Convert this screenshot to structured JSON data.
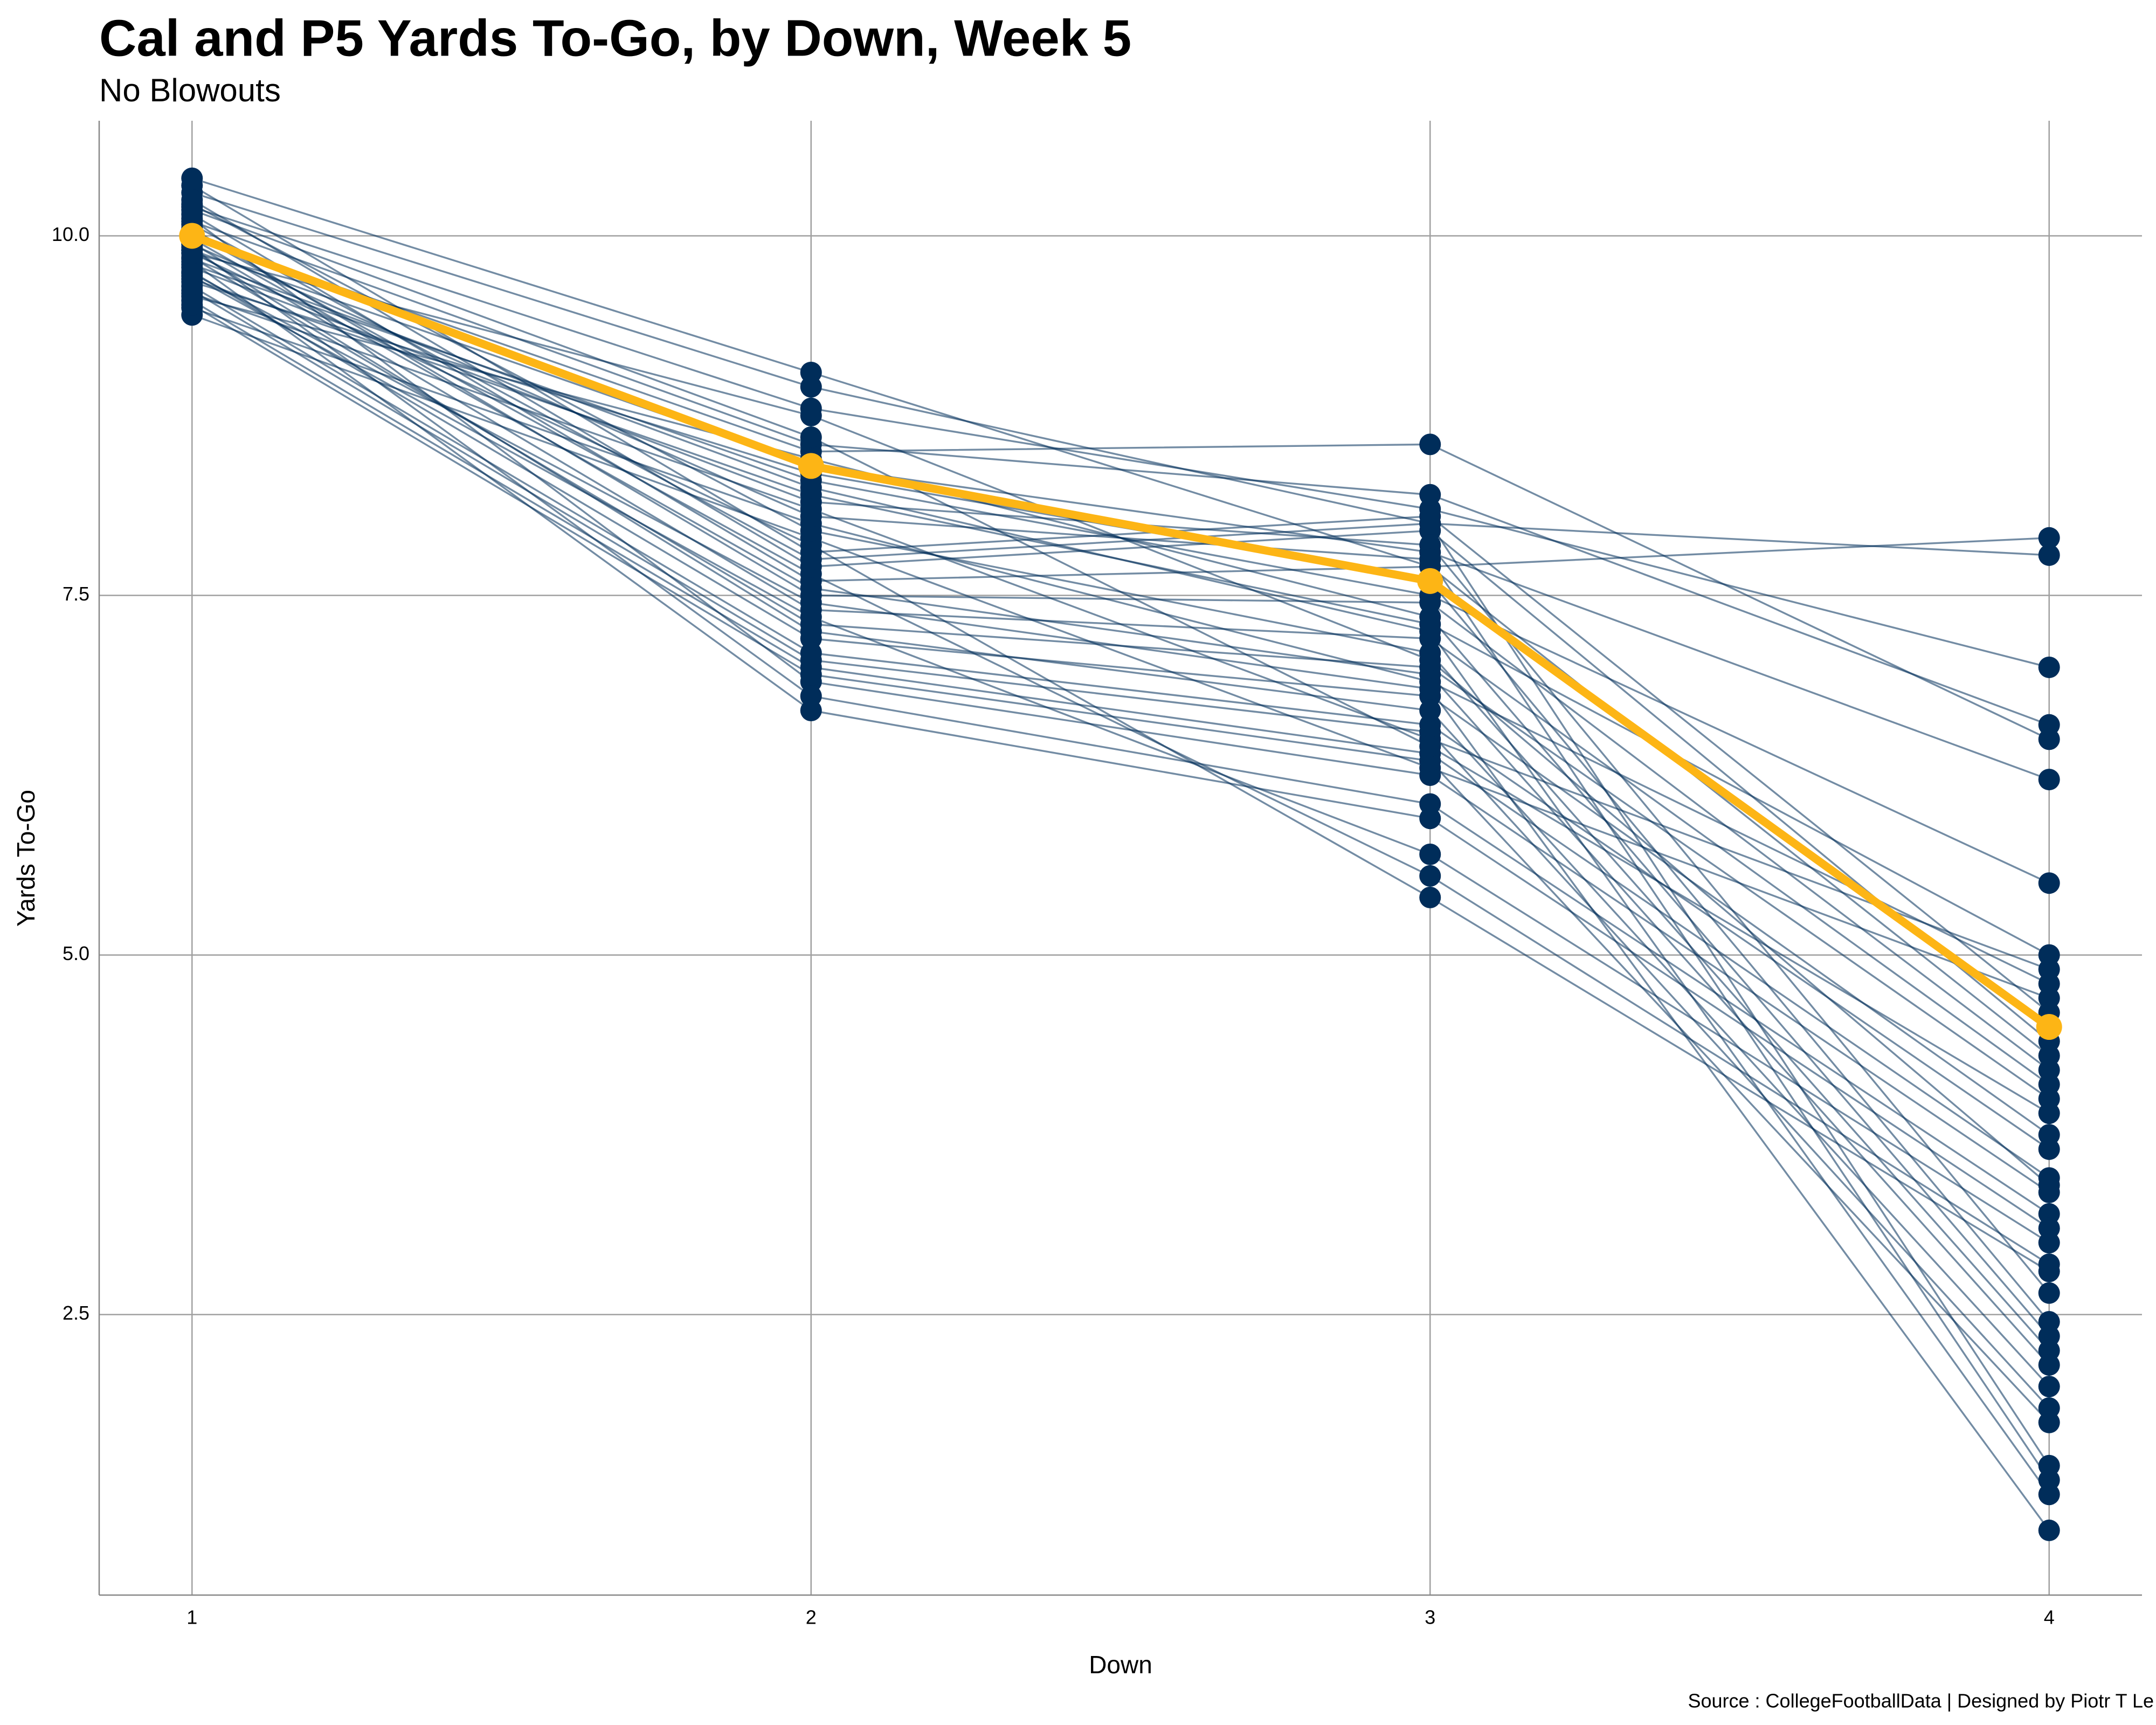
{
  "chart_data": {
    "type": "line",
    "title": "Cal and P5 Yards To-Go, by Down, Week 5",
    "subtitle": "No Blowouts",
    "x_label": "Down",
    "y_label": "Yards To-Go",
    "caption": "Source : CollegeFootballData | Designed by Piotr T Le",
    "x": [
      1,
      2,
      3,
      4
    ],
    "xlim": [
      0.85,
      4.15
    ],
    "xticks": [
      1,
      2,
      3,
      4
    ],
    "ylim": [
      0.55,
      10.8
    ],
    "yticks": [
      {
        "value": 2.5,
        "label": "2.5"
      },
      {
        "value": 5,
        "label": "5.0"
      },
      {
        "value": 7.5,
        "label": "7.5"
      },
      {
        "value": 10,
        "label": "10.0"
      }
    ],
    "grid": true,
    "color": "#002D5A",
    "series": [
      {
        "values": [
          10.4,
          9.05,
          7.7,
          7.9
        ]
      },
      {
        "values": [
          10.3,
          8.95,
          8.0,
          7.78
        ]
      },
      {
        "values": [
          10.2,
          8.8,
          8.1,
          7.0
        ]
      },
      {
        "values": [
          10.1,
          8.55,
          8.2,
          6.6
        ]
      },
      {
        "values": [
          10.0,
          8.5,
          8.55,
          6.5
        ]
      },
      {
        "values": [
          9.9,
          8.4,
          7.8,
          6.22
        ]
      },
      {
        "values": [
          9.8,
          8.3,
          7.5,
          5.5
        ]
      },
      {
        "values": [
          9.7,
          8.2,
          7.3,
          5.0
        ]
      },
      {
        "values": [
          9.6,
          8.1,
          6.5,
          4.9
        ]
      },
      {
        "values": [
          9.5,
          8.0,
          6.9,
          4.8
        ]
      },
      {
        "values": [
          9.45,
          7.9,
          6.3,
          4.7
        ]
      },
      {
        "values": [
          10.35,
          7.8,
          8.05,
          4.6
        ]
      },
      {
        "values": [
          10.25,
          7.7,
          7.95,
          4.4
        ]
      },
      {
        "values": [
          10.15,
          7.6,
          7.7,
          4.3
        ]
      },
      {
        "values": [
          10.05,
          7.5,
          7.45,
          4.2
        ]
      },
      {
        "values": [
          9.95,
          7.4,
          7.2,
          4.1
        ]
      },
      {
        "values": [
          9.85,
          7.3,
          7.0,
          4.0
        ]
      },
      {
        "values": [
          9.75,
          7.2,
          6.8,
          3.75
        ]
      },
      {
        "values": [
          9.65,
          7.1,
          6.6,
          3.65
        ]
      },
      {
        "values": [
          9.55,
          7.0,
          6.4,
          3.45
        ]
      },
      {
        "values": [
          10.12,
          6.9,
          6.25,
          3.35
        ]
      },
      {
        "values": [
          9.92,
          6.8,
          6.05,
          3.2
        ]
      },
      {
        "values": [
          9.82,
          6.7,
          5.95,
          3.1
        ]
      },
      {
        "values": [
          9.72,
          7.35,
          5.7,
          3.0
        ]
      },
      {
        "values": [
          10.02,
          7.65,
          5.55,
          2.85
        ]
      },
      {
        "values": [
          9.88,
          7.85,
          5.4,
          2.8
        ]
      },
      {
        "values": [
          9.78,
          8.15,
          7.85,
          2.65
        ]
      },
      {
        "values": [
          9.68,
          8.35,
          7.6,
          2.45
        ]
      },
      {
        "values": [
          9.58,
          8.45,
          7.35,
          2.35
        ]
      },
      {
        "values": [
          10.22,
          7.95,
          7.1,
          2.25
        ]
      },
      {
        "values": [
          9.98,
          7.55,
          6.95,
          2.15
        ]
      },
      {
        "values": [
          9.9,
          7.25,
          6.7,
          2.0
        ]
      },
      {
        "values": [
          9.62,
          7.05,
          6.55,
          1.85
        ]
      },
      {
        "values": [
          9.52,
          6.95,
          6.35,
          1.75
        ]
      },
      {
        "values": [
          10.08,
          7.75,
          8.0,
          1.45
        ]
      },
      {
        "values": [
          9.94,
          8.05,
          7.75,
          1.35
        ]
      },
      {
        "values": [
          9.84,
          8.25,
          7.25,
          1.25
        ]
      },
      {
        "values": [
          9.74,
          7.45,
          6.85,
          1.0
        ]
      },
      {
        "values": [
          10.18,
          8.6,
          6.45,
          3.9
        ]
      },
      {
        "values": [
          9.88,
          8.75,
          7.05,
          3.4
        ]
      },
      {
        "color": "#FDB515",
        "values": [
          10.0,
          8.4,
          7.6,
          4.5
        ]
      }
    ]
  }
}
